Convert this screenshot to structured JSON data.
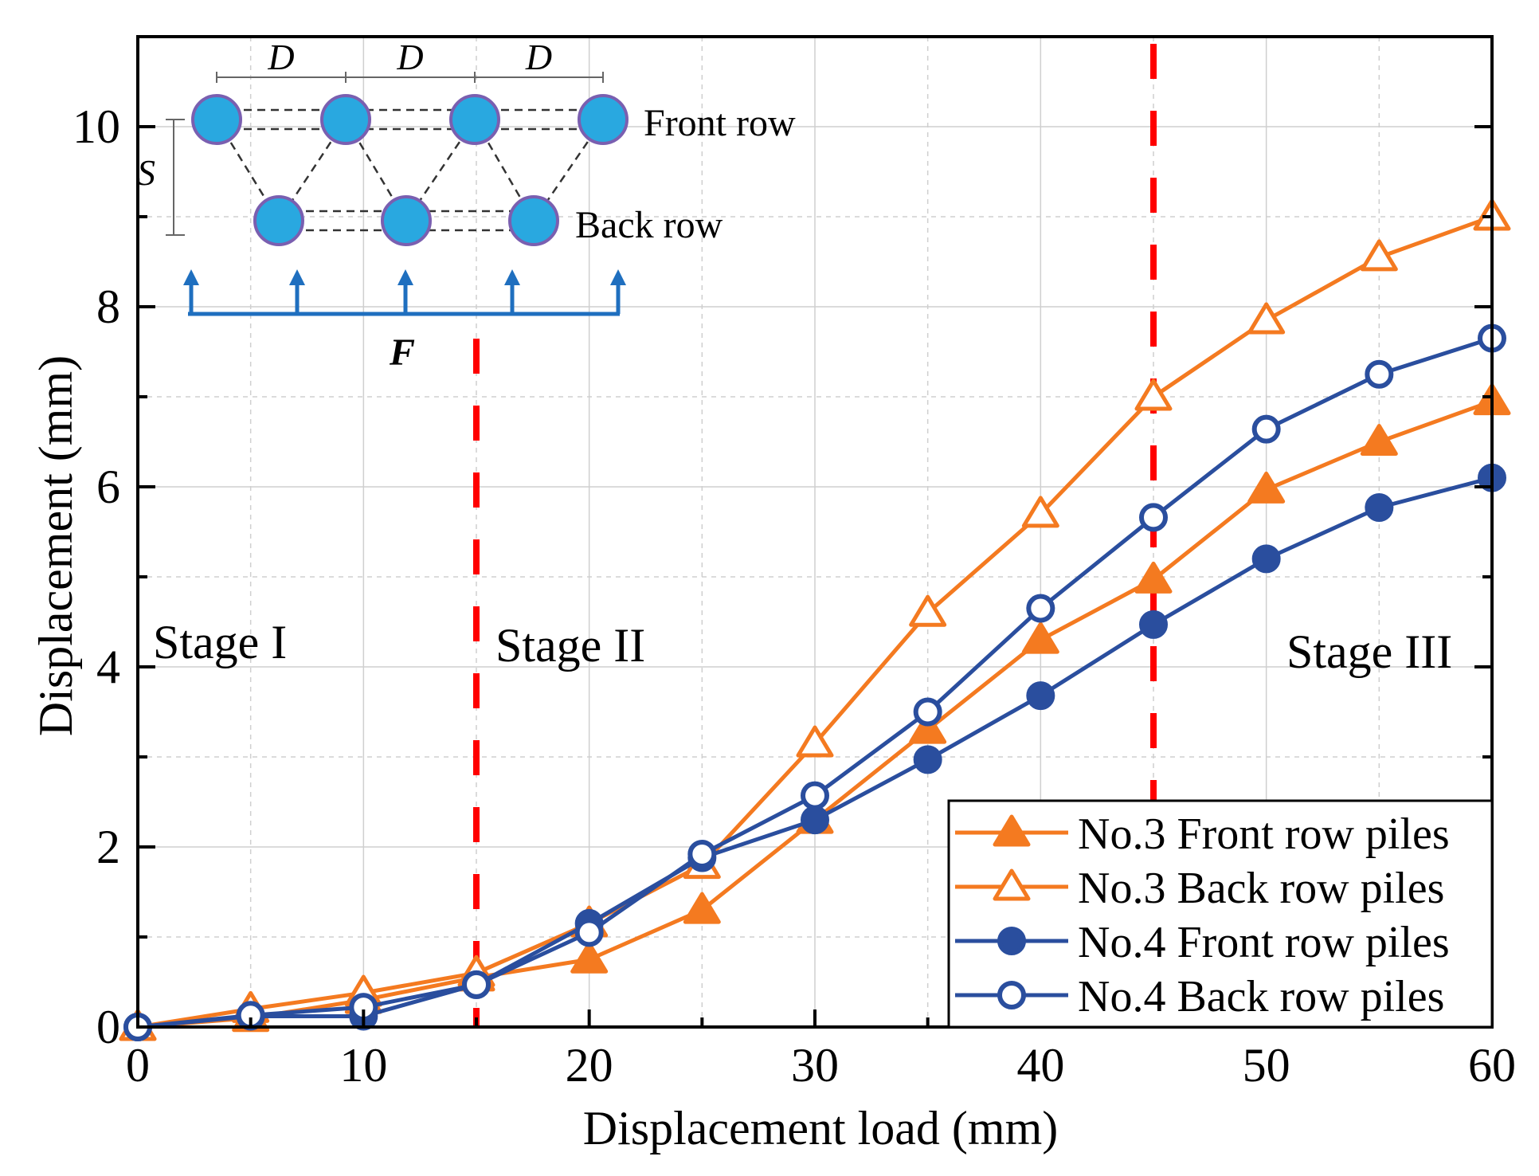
{
  "chart_data": {
    "type": "line",
    "title": "",
    "xlabel": "Displacement load (mm)",
    "ylabel": "Displacement (mm)",
    "xlim": [
      0,
      60
    ],
    "ylim": [
      0,
      11
    ],
    "xticks": [
      0,
      10,
      20,
      30,
      40,
      50,
      60
    ],
    "yticks": [
      0,
      2,
      4,
      6,
      8,
      10
    ],
    "grid": true,
    "legend_position": "bottom-right",
    "x": [
      0,
      5,
      10,
      15,
      20,
      25,
      30,
      35,
      40,
      45,
      50,
      55,
      60
    ],
    "series": [
      {
        "name": "No.3 Front row piles",
        "color": "#F47A20",
        "marker": "triangle-filled",
        "values": [
          0,
          0.1,
          0.3,
          0.55,
          0.75,
          1.3,
          2.3,
          3.3,
          4.3,
          4.97,
          5.97,
          6.5,
          6.95
        ]
      },
      {
        "name": "No.3 Back row piles",
        "color": "#F47A20",
        "marker": "triangle-open",
        "values": [
          0,
          0.2,
          0.38,
          0.6,
          1.15,
          1.8,
          3.15,
          4.6,
          5.7,
          7.0,
          7.85,
          8.55,
          9.0
        ]
      },
      {
        "name": "No.4 Front row piles",
        "color": "#2A4E9E",
        "marker": "circle-filled",
        "values": [
          0,
          0.12,
          0.12,
          0.47,
          1.15,
          1.88,
          2.3,
          2.97,
          3.68,
          4.47,
          5.2,
          5.77,
          6.1
        ]
      },
      {
        "name": "No.4 Back row piles",
        "color": "#2A4E9E",
        "marker": "circle-open",
        "values": [
          0,
          0.13,
          0.22,
          0.47,
          1.05,
          1.92,
          2.57,
          3.5,
          4.65,
          5.66,
          6.64,
          7.25,
          7.65
        ]
      }
    ],
    "vlines": [
      {
        "x": 15,
        "color": "#FF0000"
      },
      {
        "x": 45,
        "color": "#FF0000"
      }
    ],
    "annotations": {
      "stage1": "Stage I",
      "stage2": "Stage II",
      "stage3": "Stage III"
    },
    "inset": {
      "spacing_label": "D",
      "row_spacing_label": "S",
      "force_label": "F",
      "front_row_label": "Front row",
      "back_row_label": "Back row",
      "pile_color": "#29A8E0",
      "force_color": "#1F6FBF"
    }
  }
}
